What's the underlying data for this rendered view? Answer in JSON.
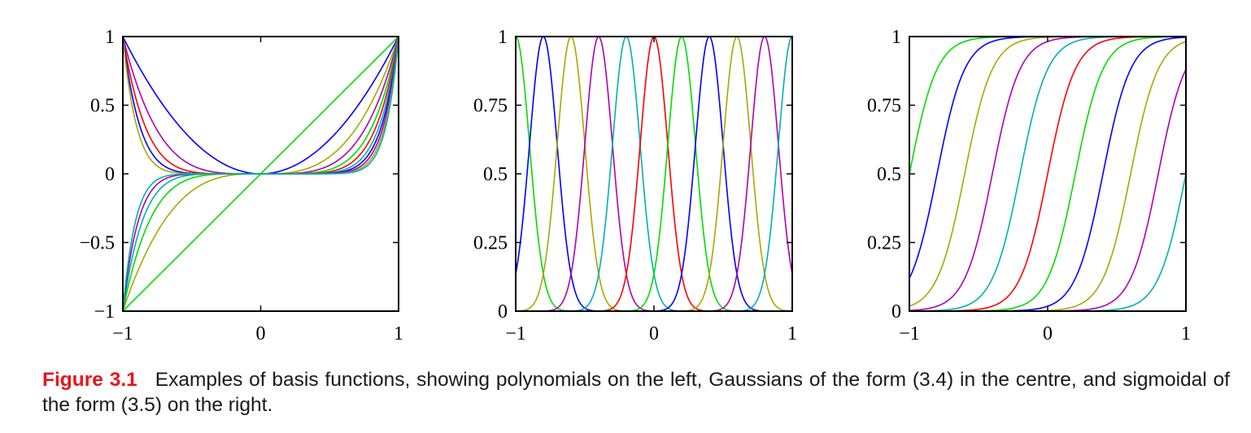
{
  "caption": {
    "label": "Figure 3.1",
    "text": "Examples of basis functions, showing polynomials on the left, Gaussians of the form (3.4) in the centre, and sigmoidal of the form (3.5) on the right.",
    "label_color": "#e8141b"
  },
  "palette": [
    "#0000ff",
    "#ff0000",
    "#00dd00",
    "#a8a800",
    "#b000b0",
    "#00b0b0"
  ],
  "chart_data": [
    {
      "type": "line",
      "name": "polynomials",
      "xlim": [
        -1,
        1
      ],
      "ylim": [
        -1,
        1
      ],
      "x_ticks": [
        -1,
        0,
        1
      ],
      "x_tick_labels": [
        "−1",
        "0",
        "1"
      ],
      "y_ticks": [
        -1,
        -0.5,
        0,
        0.5,
        1
      ],
      "y_tick_labels": [
        "−1",
        "−0.5",
        "0",
        "0.5",
        "1"
      ],
      "grid": false,
      "function": "x^j",
      "exponents": [
        1,
        2,
        3,
        4,
        5,
        6,
        7,
        8,
        9,
        10,
        11
      ],
      "series_colors": [
        "#00dd00",
        "#0000ff",
        "#a8a800",
        "#b000b0",
        "#00dd00",
        "#ff0000",
        "#00b0b0",
        "#0000ff",
        "#b000b0",
        "#a8a800",
        "#00b0b0"
      ]
    },
    {
      "type": "line",
      "name": "gaussians",
      "xlim": [
        -1,
        1
      ],
      "ylim": [
        0,
        1
      ],
      "x_ticks": [
        -1,
        0,
        1
      ],
      "x_tick_labels": [
        "−1",
        "0",
        "1"
      ],
      "y_ticks": [
        0,
        0.25,
        0.5,
        0.75,
        1
      ],
      "y_tick_labels": [
        "0",
        "0.25",
        "0.5",
        "0.75",
        "1"
      ],
      "grid": false,
      "function": "exp(-(x-mu)^2/(2 s^2))",
      "s": 0.1,
      "centers": [
        -1,
        -0.8,
        -0.6,
        -0.4,
        -0.2,
        0,
        0.2,
        0.4,
        0.6,
        0.8,
        1
      ],
      "series_colors": [
        "#00dd00",
        "#0000ff",
        "#a8a800",
        "#b000b0",
        "#00b0b0",
        "#ff0000",
        "#00dd00",
        "#0000ff",
        "#a8a800",
        "#b000b0",
        "#00b0b0"
      ]
    },
    {
      "type": "line",
      "name": "sigmoids",
      "xlim": [
        -1,
        1
      ],
      "ylim": [
        0,
        1
      ],
      "x_ticks": [
        -1,
        0,
        1
      ],
      "x_tick_labels": [
        "−1",
        "0",
        "1"
      ],
      "y_ticks": [
        0,
        0.25,
        0.5,
        0.75,
        1
      ],
      "y_tick_labels": [
        "0",
        "0.25",
        "0.5",
        "0.75",
        "1"
      ],
      "grid": false,
      "function": "1/(1+exp(-(x-mu)/s))",
      "s": 0.1,
      "centers": [
        -1,
        -0.8,
        -0.6,
        -0.4,
        -0.2,
        0,
        0.2,
        0.4,
        0.6,
        0.8,
        1
      ],
      "series_colors": [
        "#00dd00",
        "#0000ff",
        "#a8a800",
        "#b000b0",
        "#00b0b0",
        "#ff0000",
        "#00dd00",
        "#0000ff",
        "#a8a800",
        "#b000b0",
        "#00b0b0"
      ]
    }
  ]
}
